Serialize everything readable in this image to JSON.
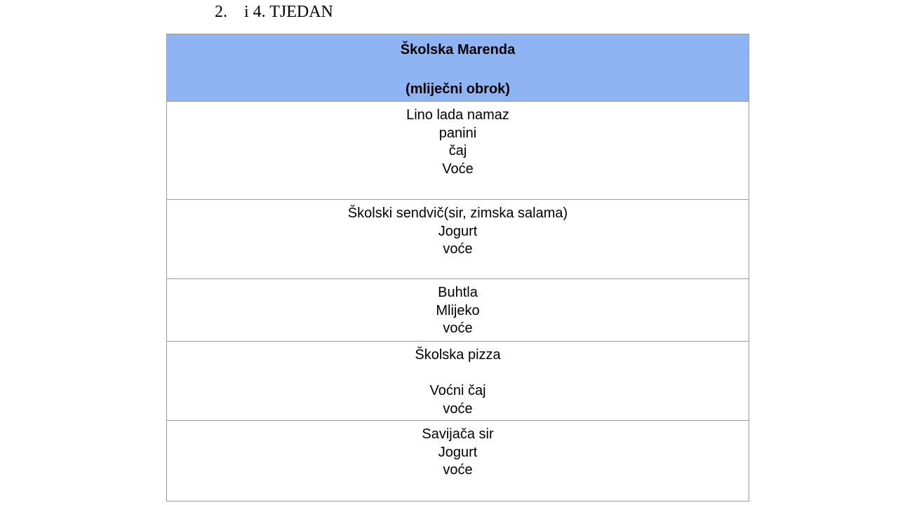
{
  "heading": {
    "number": "2.",
    "text": "i 4. TJEDAN"
  },
  "table": {
    "header_title": "Školska Marenda",
    "header_subtitle": "(mliječni obrok)",
    "rows": [
      {
        "lines": [
          "Lino lada namaz",
          "panini",
          "čaj",
          "Voće"
        ]
      },
      {
        "lines": [
          "Školski sendvič(sir, zimska salama)",
          "Jogurt",
          "voće"
        ]
      },
      {
        "lines": [
          "Buhtla",
          "Mlijeko",
          "voće"
        ]
      },
      {
        "lines": [
          "Školska pizza",
          "",
          "Voćni čaj",
          "voće"
        ]
      },
      {
        "lines": [
          "Savijača sir",
          "Jogurt",
          "voće"
        ]
      }
    ]
  },
  "colors": {
    "header_bg": "#8eb4f3",
    "border": "#9a9a9a"
  }
}
